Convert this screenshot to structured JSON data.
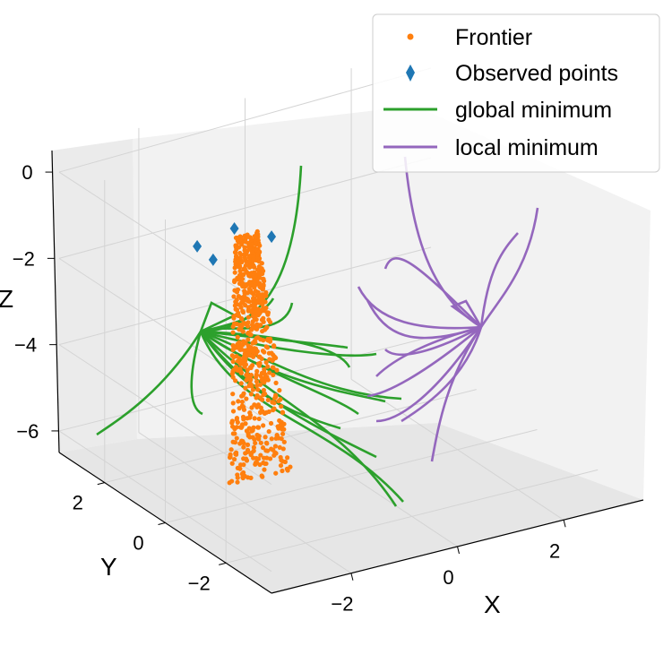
{
  "chart_data": {
    "type": "line",
    "projection": "3d",
    "xlabel": "X",
    "ylabel": "Y",
    "zlabel": "Z",
    "xlim": [
      -3.5,
      3.5
    ],
    "ylim": [
      -3.5,
      3.5
    ],
    "zlim": [
      -6.5,
      0.5
    ],
    "x_ticks": [
      "−2",
      "0",
      "2"
    ],
    "y_ticks": [
      "2",
      "0",
      "−2"
    ],
    "z_ticks": [
      "0",
      "−2",
      "−4",
      "−6"
    ],
    "grid": true,
    "legend_position": "top-right",
    "legend": [
      "Frontier",
      "Observed points",
      "global minimum",
      "local minimum"
    ],
    "colors": {
      "frontier": "#ff7f0e",
      "observed": "#1f77b4",
      "global": "#2ca02c",
      "local": "#9467bd",
      "pane": "#f2f2f2",
      "grid": "#d4d4d4"
    },
    "observed_points": [
      {
        "x": -2.9,
        "y": 0.0,
        "z": -0.3
      },
      {
        "x": -2.6,
        "y": 0.0,
        "z": -0.7
      },
      {
        "x": -2.2,
        "y": 0.0,
        "z": -0.1
      },
      {
        "x": -1.5,
        "y": 0.0,
        "z": -0.5
      }
    ],
    "global_minimum_point": {
      "x": -2.5,
      "y": 2.0,
      "z": -4.0
    },
    "local_minimum_point": {
      "x": 2.5,
      "y": 2.0,
      "z": -4.0
    },
    "frontier_region": {
      "x_range": [
        -2.3,
        -1.1
      ],
      "y": 0.0,
      "z_range": [
        -6.0,
        -0.3
      ],
      "approx_point_count": 700
    }
  }
}
